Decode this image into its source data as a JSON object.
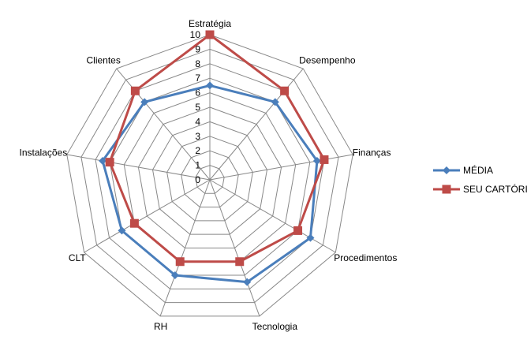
{
  "chart_data": {
    "type": "radar",
    "title": "",
    "categories": [
      "Estratégia",
      "Desempenho",
      "Finanças",
      "Procedimentos",
      "Tecnologia",
      "RH",
      "CLT",
      "Instalações",
      "Clientes"
    ],
    "rlim": [
      0,
      10
    ],
    "ticks": [
      "0",
      "1",
      "2",
      "3",
      "4",
      "5",
      "6",
      "7",
      "8",
      "9",
      "10"
    ],
    "grid": true,
    "legend_position": "right",
    "series": [
      {
        "name": "MÉDIA",
        "color": "#4A7EBB",
        "marker": "diamond",
        "values": [
          6.5,
          7,
          7.5,
          8,
          7.5,
          7,
          7,
          7.5,
          7
        ]
      },
      {
        "name": "SEU CARTÓRIO",
        "color": "#BE4B48",
        "marker": "square",
        "values": [
          10,
          8,
          8,
          7,
          6,
          6,
          6,
          7,
          8
        ]
      }
    ]
  }
}
